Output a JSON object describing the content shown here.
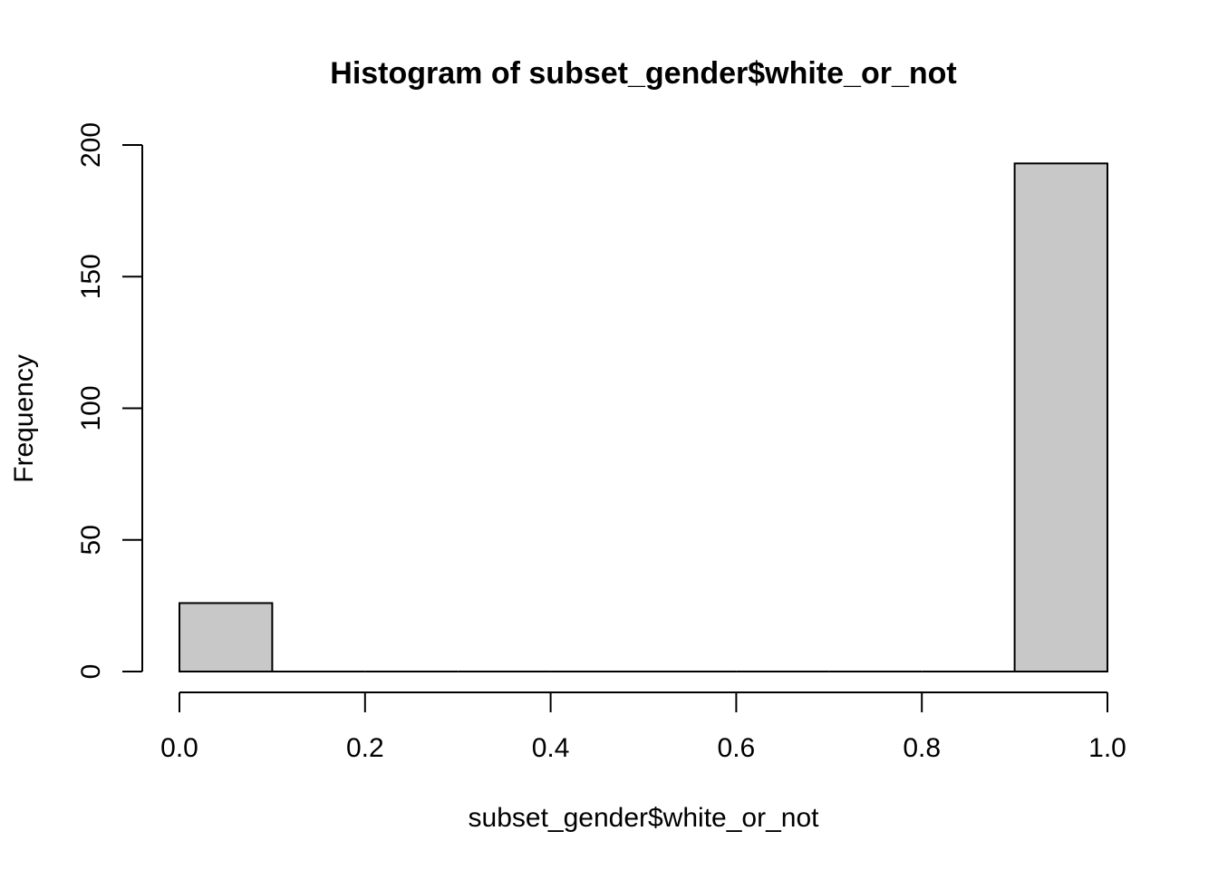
{
  "chart_data": {
    "type": "bar",
    "title": "Histogram of subset_gender$white_or_not",
    "xlabel": "subset_gender$white_or_not",
    "ylabel": "Frequency",
    "bins": [
      {
        "from": 0.0,
        "to": 0.1,
        "count": 26
      },
      {
        "from": 0.1,
        "to": 0.2,
        "count": 0
      },
      {
        "from": 0.2,
        "to": 0.3,
        "count": 0
      },
      {
        "from": 0.3,
        "to": 0.4,
        "count": 0
      },
      {
        "from": 0.4,
        "to": 0.5,
        "count": 0
      },
      {
        "from": 0.5,
        "to": 0.6,
        "count": 0
      },
      {
        "from": 0.6,
        "to": 0.7,
        "count": 0
      },
      {
        "from": 0.7,
        "to": 0.8,
        "count": 0
      },
      {
        "from": 0.8,
        "to": 0.9,
        "count": 0
      },
      {
        "from": 0.9,
        "to": 1.0,
        "count": 193
      }
    ],
    "xlim": [
      0.0,
      1.0
    ],
    "ylim": [
      0,
      200
    ],
    "x_ticks": [
      "0.0",
      "0.2",
      "0.4",
      "0.6",
      "0.8",
      "1.0"
    ],
    "y_ticks": [
      "0",
      "50",
      "100",
      "150",
      "200"
    ],
    "bar_fill": "#c8c8c8",
    "bar_stroke": "#000000",
    "grid": false,
    "legend": "none"
  }
}
